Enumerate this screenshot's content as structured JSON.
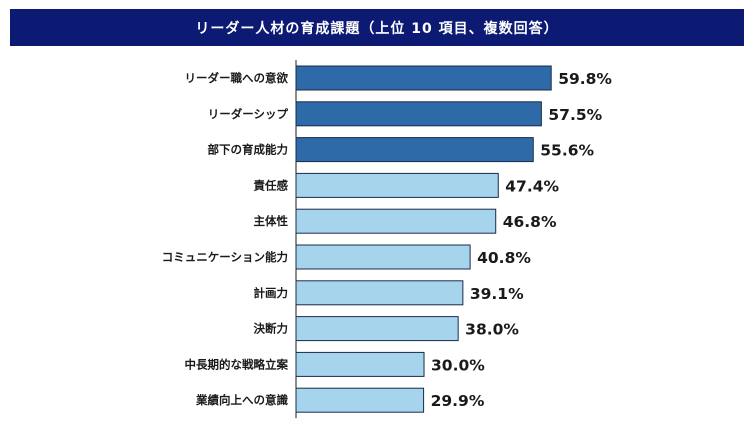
{
  "chart_data": {
    "type": "bar",
    "orientation": "horizontal",
    "title": "リーダー人材の育成課題（上位 10 項目、複数回答）",
    "categories": [
      "リーダー職への意欲",
      "リーダーシップ",
      "部下の育成能力",
      "責任感",
      "主体性",
      "コミュニケーション能力",
      "計画力",
      "決断力",
      "中長期的な戦略立案",
      "業績向上への意識"
    ],
    "values": [
      59.8,
      57.5,
      55.6,
      47.4,
      46.8,
      40.8,
      39.1,
      38.0,
      30.0,
      29.9
    ],
    "value_labels": [
      "59.8%",
      "57.5%",
      "55.6%",
      "47.4%",
      "46.8%",
      "40.8%",
      "39.1%",
      "38.0%",
      "30.0%",
      "29.9%"
    ],
    "unit": "%",
    "xlim": [
      0,
      100
    ],
    "grid": false,
    "legend": "none",
    "colors": {
      "highlight_bar": "#2e6aa8",
      "regular_bar": "#a6d4ec",
      "bar_border": "#1b2a4a",
      "title_background": "#0c1a74",
      "title_text": "#ffffff"
    },
    "highlight_count": 3
  }
}
